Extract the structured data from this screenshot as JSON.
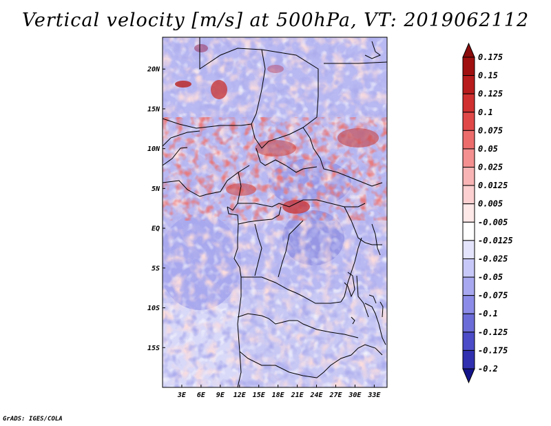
{
  "title": "Vertical velocity [m/s] at 500hPa, VT: 2019062112",
  "credit": "GrADS: IGES/COLA",
  "map": {
    "lon_range": [
      0,
      35
    ],
    "lat_range": [
      -20,
      24
    ],
    "lat_ticks": [
      {
        "value": 20,
        "label": "20N"
      },
      {
        "value": 15,
        "label": "15N"
      },
      {
        "value": 10,
        "label": "10N"
      },
      {
        "value": 5,
        "label": "5N"
      },
      {
        "value": 0,
        "label": "EQ"
      },
      {
        "value": -5,
        "label": "5S"
      },
      {
        "value": -10,
        "label": "10S"
      },
      {
        "value": -15,
        "label": "15S"
      }
    ],
    "lon_ticks": [
      {
        "value": 3,
        "label": "3E"
      },
      {
        "value": 6,
        "label": "6E"
      },
      {
        "value": 9,
        "label": "9E"
      },
      {
        "value": 12,
        "label": "12E"
      },
      {
        "value": 15,
        "label": "15E"
      },
      {
        "value": 18,
        "label": "18E"
      },
      {
        "value": 21,
        "label": "21E"
      },
      {
        "value": 24,
        "label": "24E"
      },
      {
        "value": 27,
        "label": "27E"
      },
      {
        "value": 30,
        "label": "30E"
      },
      {
        "value": 33,
        "label": "33E"
      }
    ]
  },
  "colorbar": {
    "levels": [
      {
        "label": "0.175",
        "color": "#a01010"
      },
      {
        "label": "0.15",
        "color": "#b81c1c"
      },
      {
        "label": "0.125",
        "color": "#d03030"
      },
      {
        "label": "0.1",
        "color": "#e04848"
      },
      {
        "label": "0.075",
        "color": "#ec6c6c"
      },
      {
        "label": "0.05",
        "color": "#f49090"
      },
      {
        "label": "0.025",
        "color": "#f8b4b4"
      },
      {
        "label": "0.0125",
        "color": "#fcd0d0"
      },
      {
        "label": "0.005",
        "color": "#fee8e8"
      },
      {
        "label": "-0.005",
        "color": "#ffffff"
      },
      {
        "label": "-0.0125",
        "color": "#e4e4fc"
      },
      {
        "label": "-0.025",
        "color": "#c8c8f8"
      },
      {
        "label": "-0.05",
        "color": "#a8a8f0"
      },
      {
        "label": "-0.075",
        "color": "#8c8ce8"
      },
      {
        "label": "-0.1",
        "color": "#6c6cd8"
      },
      {
        "label": "-0.125",
        "color": "#4c4cc8"
      },
      {
        "label": "-0.175",
        "color": "#3030b0"
      },
      {
        "label": "-0.2",
        "color": "#1c1c98"
      }
    ],
    "top_color": "#8a0c0c",
    "bottom_color": "#14148a"
  }
}
